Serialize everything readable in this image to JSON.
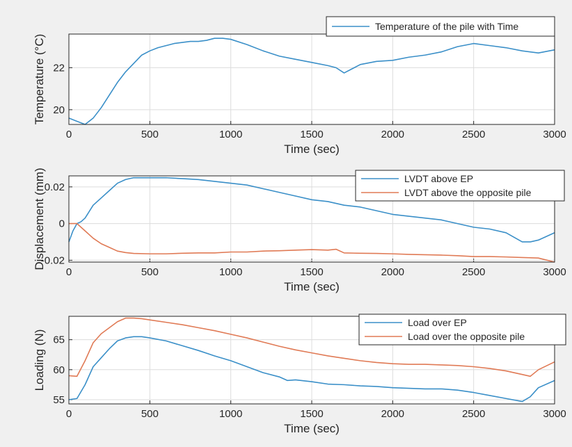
{
  "colors": {
    "background": "#f0f0f0",
    "axes_bg": "#ffffff",
    "series_blue": "#3a8fc8",
    "series_orange": "#e07a55",
    "grid": "#dcdcdc",
    "axis": "#262626"
  },
  "chart_data": [
    {
      "type": "line",
      "title": "",
      "xlabel": "Time (sec)",
      "ylabel": "Temperature (°C)",
      "xlim": [
        0,
        3000
      ],
      "ylim": [
        19.3,
        23.6
      ],
      "xticks": [
        0,
        500,
        1000,
        1500,
        2000,
        2500,
        3000
      ],
      "yticks": [
        20,
        22
      ],
      "grid": true,
      "legend_position": "top-right",
      "series": [
        {
          "name": "Temperature of the pile with Time",
          "color": "#3a8fc8",
          "x": [
            0,
            50,
            100,
            150,
            200,
            250,
            300,
            350,
            400,
            450,
            500,
            550,
            600,
            650,
            700,
            750,
            800,
            850,
            900,
            950,
            1000,
            1100,
            1200,
            1300,
            1400,
            1500,
            1600,
            1650,
            1700,
            1750,
            1800,
            1900,
            2000,
            2100,
            2200,
            2300,
            2400,
            2500,
            2600,
            2700,
            2800,
            2900,
            3000
          ],
          "y": [
            19.6,
            19.45,
            19.3,
            19.6,
            20.1,
            20.7,
            21.3,
            21.8,
            22.2,
            22.6,
            22.8,
            22.95,
            23.05,
            23.15,
            23.2,
            23.25,
            23.25,
            23.3,
            23.4,
            23.4,
            23.35,
            23.1,
            22.8,
            22.55,
            22.4,
            22.25,
            22.1,
            22.0,
            21.75,
            21.95,
            22.15,
            22.3,
            22.35,
            22.5,
            22.6,
            22.75,
            23.0,
            23.15,
            23.05,
            22.95,
            22.8,
            22.7,
            22.85
          ]
        }
      ]
    },
    {
      "type": "line",
      "title": "",
      "xlabel": "Time (sec)",
      "ylabel": "Displacement (mm)",
      "xlim": [
        0,
        3000
      ],
      "ylim": [
        -0.021,
        0.026
      ],
      "xticks": [
        0,
        500,
        1000,
        1500,
        2000,
        2500,
        3000
      ],
      "yticks": [
        -0.02,
        0,
        0.02
      ],
      "ytick_labels": [
        "-0.02",
        "0",
        "0.02"
      ],
      "grid": true,
      "legend_position": "top-right",
      "series": [
        {
          "name": "LVDT above EP",
          "color": "#3a8fc8",
          "x": [
            0,
            25,
            50,
            75,
            100,
            150,
            200,
            250,
            300,
            350,
            400,
            450,
            500,
            600,
            700,
            800,
            900,
            1000,
            1100,
            1200,
            1300,
            1400,
            1500,
            1600,
            1700,
            1800,
            1900,
            2000,
            2100,
            2200,
            2300,
            2400,
            2500,
            2600,
            2700,
            2800,
            2850,
            2900,
            3000
          ],
          "y": [
            -0.01,
            -0.004,
            0,
            0.001,
            0.003,
            0.01,
            0.014,
            0.018,
            0.022,
            0.024,
            0.025,
            0.025,
            0.025,
            0.025,
            0.0245,
            0.024,
            0.023,
            0.022,
            0.021,
            0.019,
            0.017,
            0.015,
            0.013,
            0.012,
            0.01,
            0.009,
            0.007,
            0.005,
            0.004,
            0.003,
            0.002,
            0.0,
            -0.002,
            -0.003,
            -0.005,
            -0.01,
            -0.01,
            -0.009,
            -0.005
          ]
        },
        {
          "name": "LVDT above the opposite pile",
          "color": "#e07a55",
          "x": [
            0,
            50,
            100,
            150,
            200,
            250,
            300,
            350,
            400,
            500,
            600,
            700,
            800,
            900,
            1000,
            1100,
            1200,
            1300,
            1400,
            1500,
            1600,
            1650,
            1700,
            1800,
            1900,
            2000,
            2100,
            2200,
            2300,
            2400,
            2500,
            2600,
            2700,
            2800,
            2900,
            3000
          ],
          "y": [
            0,
            0,
            -0.004,
            -0.008,
            -0.011,
            -0.013,
            -0.015,
            -0.0158,
            -0.0163,
            -0.0165,
            -0.0165,
            -0.0162,
            -0.016,
            -0.016,
            -0.0155,
            -0.0155,
            -0.015,
            -0.0148,
            -0.0145,
            -0.0142,
            -0.0145,
            -0.014,
            -0.016,
            -0.0162,
            -0.0163,
            -0.0165,
            -0.0168,
            -0.017,
            -0.0172,
            -0.0175,
            -0.018,
            -0.018,
            -0.0182,
            -0.0185,
            -0.0188,
            -0.021
          ]
        }
      ]
    },
    {
      "type": "line",
      "title": "",
      "xlabel": "Time (sec)",
      "ylabel": "Loading (N)",
      "xlim": [
        0,
        3000
      ],
      "ylim": [
        54.3,
        68.9
      ],
      "xticks": [
        0,
        500,
        1000,
        1500,
        2000,
        2500,
        3000
      ],
      "yticks": [
        55,
        60,
        65
      ],
      "grid": true,
      "legend_position": "top-right",
      "series": [
        {
          "name": "Load over EP",
          "color": "#3a8fc8",
          "x": [
            0,
            50,
            100,
            150,
            200,
            250,
            300,
            350,
            400,
            450,
            500,
            600,
            700,
            800,
            900,
            1000,
            1100,
            1200,
            1300,
            1350,
            1400,
            1500,
            1600,
            1700,
            1800,
            1900,
            2000,
            2100,
            2200,
            2300,
            2400,
            2500,
            2600,
            2700,
            2800,
            2850,
            2900,
            3000
          ],
          "y": [
            55,
            55.2,
            57.5,
            60.5,
            62.0,
            63.5,
            64.8,
            65.3,
            65.5,
            65.5,
            65.3,
            64.8,
            64.0,
            63.2,
            62.3,
            61.5,
            60.5,
            59.5,
            58.8,
            58.2,
            58.3,
            58.0,
            57.6,
            57.5,
            57.3,
            57.2,
            57.0,
            56.9,
            56.8,
            56.8,
            56.6,
            56.2,
            55.7,
            55.2,
            54.7,
            55.5,
            57.0,
            58.2
          ]
        },
        {
          "name": "Load over the opposite pile",
          "color": "#e07a55",
          "x": [
            0,
            50,
            100,
            150,
            200,
            250,
            300,
            350,
            400,
            450,
            500,
            600,
            700,
            800,
            900,
            1000,
            1100,
            1200,
            1300,
            1400,
            1500,
            1600,
            1700,
            1800,
            1900,
            2000,
            2100,
            2200,
            2300,
            2400,
            2500,
            2600,
            2700,
            2800,
            2850,
            2900,
            3000
          ],
          "y": [
            59.0,
            58.9,
            61.5,
            64.5,
            66.0,
            67.0,
            68.0,
            68.6,
            68.6,
            68.5,
            68.3,
            67.9,
            67.5,
            67.0,
            66.5,
            65.9,
            65.3,
            64.6,
            63.9,
            63.3,
            62.8,
            62.3,
            61.9,
            61.5,
            61.2,
            61.0,
            60.9,
            60.9,
            60.8,
            60.7,
            60.5,
            60.2,
            59.8,
            59.2,
            58.9,
            60.0,
            61.3
          ]
        }
      ]
    }
  ]
}
